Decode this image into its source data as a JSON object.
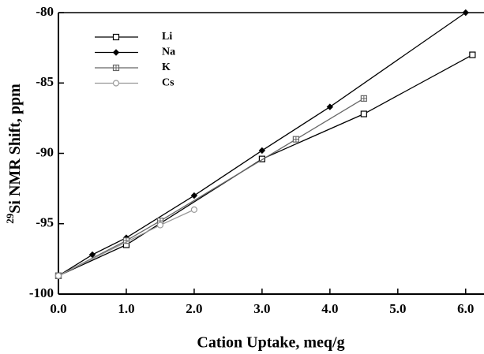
{
  "chart_data": {
    "type": "line",
    "x_label": "Cation Uptake, meq/g",
    "y_label_sup": "29",
    "y_label": "Si NMR Shift, ppm",
    "xlim": [
      0,
      6.27
    ],
    "ylim": [
      -100,
      -80
    ],
    "xticks": [
      {
        "value": 0,
        "label": "0.0"
      },
      {
        "value": 1,
        "label": "1.0"
      },
      {
        "value": 2,
        "label": "2.0"
      },
      {
        "value": 3,
        "label": "3.0"
      },
      {
        "value": 4,
        "label": "4.0"
      },
      {
        "value": 5,
        "label": "5.0"
      },
      {
        "value": 6,
        "label": "6.0"
      }
    ],
    "yticks": [
      -100,
      -95,
      -90,
      -85,
      -80
    ],
    "series": [
      {
        "name": "Li",
        "color": "#000000",
        "marker": "square",
        "x": [
          0,
          1.0,
          3.0,
          4.5,
          6.1
        ],
        "values": [
          -98.7,
          -96.5,
          -90.4,
          -87.2,
          -83.0
        ]
      },
      {
        "name": "Na",
        "color": "#000000",
        "marker": "diamond",
        "x": [
          0,
          0.5,
          1.0,
          2.0,
          3.0,
          4.0,
          6.0
        ],
        "values": [
          -98.7,
          -97.2,
          -96.0,
          -93.0,
          -89.8,
          -86.7,
          -80.0
        ]
      },
      {
        "name": "K",
        "color": "#666666",
        "marker": "square-cross",
        "x": [
          0,
          1.0,
          1.5,
          3.5,
          4.5
        ],
        "values": [
          -98.7,
          -96.2,
          -94.8,
          -89.0,
          -86.1
        ]
      },
      {
        "name": "Cs",
        "color": "#999999",
        "marker": "circle",
        "x": [
          0,
          1.5,
          2.0
        ],
        "values": [
          -98.7,
          -95.1,
          -94.0
        ]
      }
    ]
  }
}
